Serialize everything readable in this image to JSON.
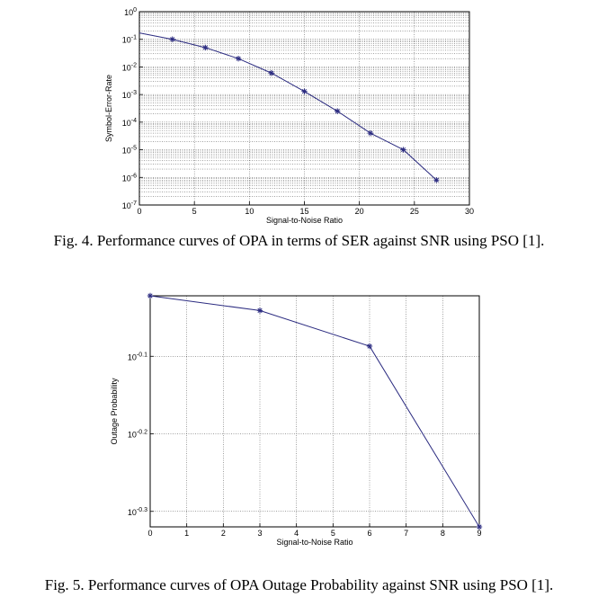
{
  "captions": {
    "fig4": "Fig. 4. Performance curves of OPA in terms of SER against SNR using PSO [1].",
    "fig5": "Fig. 5. Performance curves of OPA Outage Probability against SNR using PSO [1]."
  },
  "chart_data": [
    {
      "type": "line",
      "xlabel": "Signal-to-Noise Ratio",
      "ylabel": "Symbol-Error-Rate",
      "xlim": [
        0,
        30
      ],
      "ylim": [
        1e-07,
        1
      ],
      "yscale": "log",
      "grid": true,
      "xticks": [
        "0",
        "5",
        "10",
        "15",
        "20",
        "25",
        "30"
      ],
      "yticks": [
        {
          "exp": -7,
          "label": "-7"
        },
        {
          "exp": -6,
          "label": "-6"
        },
        {
          "exp": -5,
          "label": "-5"
        },
        {
          "exp": -4,
          "label": "-4"
        },
        {
          "exp": -3,
          "label": "-3"
        },
        {
          "exp": -2,
          "label": "-2"
        },
        {
          "exp": -1,
          "label": "-1"
        },
        {
          "exp": 0,
          "label": "0"
        }
      ],
      "line_color": "#2b2b80",
      "x": [
        0,
        3,
        6,
        9,
        12,
        15,
        18,
        21,
        24,
        27
      ],
      "y": [
        0.17,
        0.1,
        0.05,
        0.02,
        0.006,
        0.0013,
        0.00025,
        4e-05,
        1e-05,
        8e-07
      ],
      "marked": [
        false,
        true,
        true,
        true,
        true,
        true,
        true,
        true,
        true,
        true
      ]
    },
    {
      "type": "line",
      "xlabel": "Signal-to-Noise Ratio",
      "ylabel": "Outage Probability",
      "xlim": [
        0,
        9
      ],
      "yscale": "log",
      "ylim_exp": [
        -0.32,
        -0.022
      ],
      "grid": true,
      "xticks": [
        "0",
        "1",
        "2",
        "3",
        "4",
        "5",
        "6",
        "7",
        "8",
        "9"
      ],
      "yticks": [
        {
          "exp": -0.1,
          "label": "-0.1"
        },
        {
          "exp": -0.2,
          "label": "-0.2"
        },
        {
          "exp": -0.3,
          "label": "-0.3"
        }
      ],
      "line_color": "#2b2b80",
      "x": [
        0,
        3,
        6,
        9
      ],
      "y_exp": [
        -0.022,
        -0.041,
        -0.087,
        -0.32
      ],
      "marked": [
        true,
        true,
        true,
        true
      ]
    }
  ]
}
